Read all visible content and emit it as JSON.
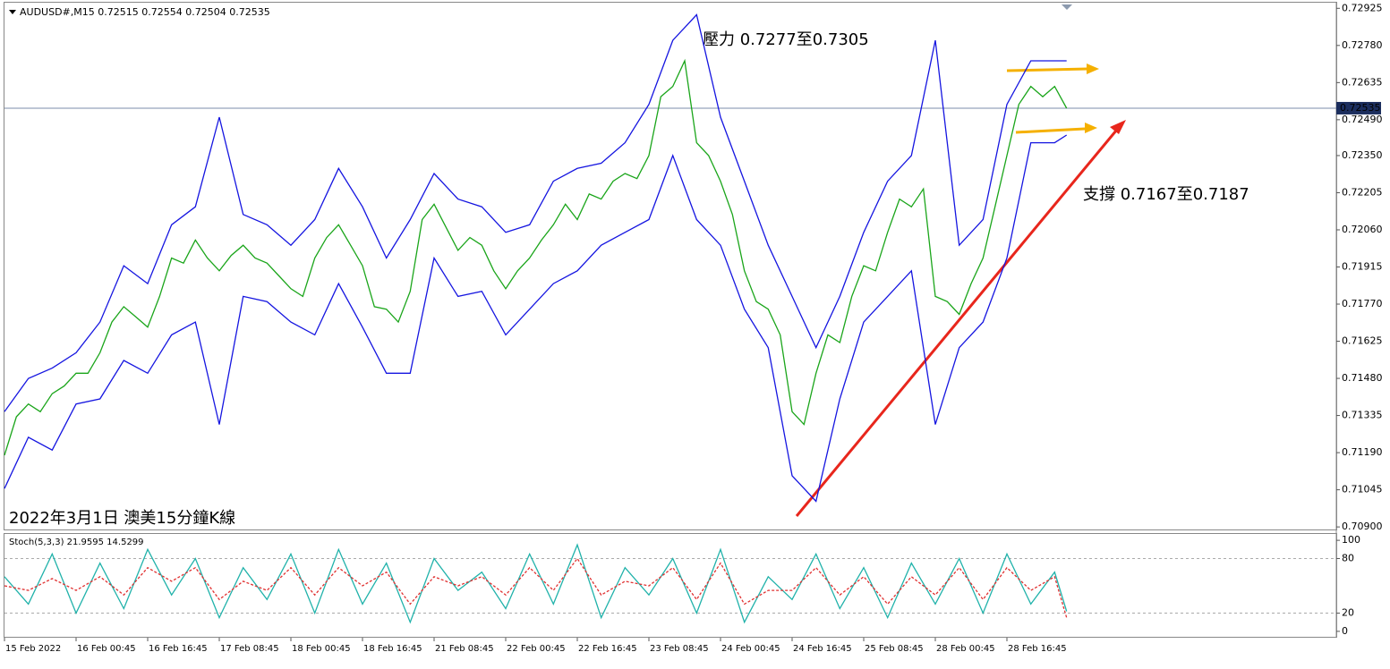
{
  "header": "AUDUSD#,M15  0.72515 0.72554 0.72504 0.72535",
  "chart_data": [
    {
      "type": "line",
      "annotations": [
        "壓力 0.7277至0.7305",
        "支撐 0.7167至0.7187",
        "2022年3月1日 澳美15分鐘K線"
      ],
      "last_price": 0.72535,
      "xlim": [
        0,
        111.6
      ],
      "xticks": [
        {
          "value": 0,
          "label": "15 Feb 2022"
        },
        {
          "value": 6,
          "label": "16 Feb 00:45"
        },
        {
          "value": 12,
          "label": "16 Feb 16:45"
        },
        {
          "value": 18,
          "label": "17 Feb 08:45"
        },
        {
          "value": 24,
          "label": "18 Feb 00:45"
        },
        {
          "value": 30,
          "label": "18 Feb 16:45"
        },
        {
          "value": 36,
          "label": "21 Feb 08:45"
        },
        {
          "value": 42,
          "label": "22 Feb 00:45"
        },
        {
          "value": 48,
          "label": "22 Feb 16:45"
        },
        {
          "value": 54,
          "label": "23 Feb 08:45"
        },
        {
          "value": 60,
          "label": "24 Feb 00:45"
        },
        {
          "value": 66,
          "label": "24 Feb 16:45"
        },
        {
          "value": 72,
          "label": "25 Feb 08:45"
        },
        {
          "value": 78,
          "label": "28 Feb 00:45"
        },
        {
          "value": 84,
          "label": "28 Feb 16:45"
        }
      ],
      "ylim": [
        0.7089,
        0.7294
      ],
      "yticks": [
        0.72925,
        {
          "value": 0.7278,
          "label": "0.72780"
        },
        0.72635,
        {
          "value": 0.7249,
          "label": "0.72490"
        },
        {
          "value": 0.7235,
          "label": "0.72350"
        },
        0.72205,
        {
          "value": 0.7206,
          "label": "0.72060"
        },
        0.71915,
        {
          "value": 0.7177,
          "label": "0.71770"
        },
        0.71625,
        {
          "value": 0.7148,
          "label": "0.71480"
        },
        0.71335,
        {
          "value": 0.7119,
          "label": "0.71190"
        },
        0.71045,
        {
          "value": 0.709,
          "label": "0.70900"
        }
      ],
      "x": [
        0,
        1,
        2,
        3,
        4,
        5,
        6,
        7,
        8,
        9,
        10,
        11,
        12,
        13,
        14,
        15,
        16,
        17,
        18,
        19,
        20,
        21,
        22,
        23,
        24,
        25,
        26,
        27,
        28,
        29,
        30,
        31,
        32,
        33,
        34,
        35,
        36,
        37,
        38,
        39,
        40,
        41,
        42,
        43,
        44,
        45,
        46,
        47,
        48,
        49,
        50,
        51,
        52,
        53,
        54,
        55,
        56,
        57,
        58,
        59,
        60,
        61,
        62,
        63,
        64,
        65,
        66,
        67,
        68,
        69,
        70,
        71,
        72,
        73,
        74,
        75,
        76,
        77,
        78,
        79,
        80,
        81,
        82,
        83,
        84,
        85,
        86,
        87,
        88,
        89
      ],
      "series": [
        {
          "color": "#1aa51a",
          "values": [
            0.7118,
            0.7133,
            0.7138,
            0.7135,
            0.7142,
            0.7145,
            0.715,
            0.715,
            0.7158,
            0.717,
            0.7176,
            0.7172,
            0.7168,
            0.718,
            0.7195,
            0.7193,
            0.7202,
            0.7195,
            0.719,
            0.7196,
            0.72,
            0.7195,
            0.7193,
            0.7188,
            0.7183,
            0.718,
            0.7195,
            0.7203,
            0.7208,
            0.72,
            0.7192,
            0.7176,
            0.7175,
            0.717,
            0.7182,
            0.721,
            0.7216,
            0.7207,
            0.7198,
            0.7203,
            0.72,
            0.719,
            0.7183,
            0.719,
            0.7195,
            0.7202,
            0.7208,
            0.7216,
            0.721,
            0.722,
            0.7218,
            0.7225,
            0.7228,
            0.7226,
            0.7235,
            0.7258,
            0.7262,
            0.7272,
            0.724,
            0.7235,
            0.7225,
            0.7212,
            0.719,
            0.7178,
            0.7175,
            0.7165,
            0.7135,
            0.713,
            0.715,
            0.7165,
            0.7162,
            0.718,
            0.7192,
            0.719,
            0.7205,
            0.7218,
            0.7215,
            0.7222,
            0.718,
            0.7178,
            0.7173,
            0.7185,
            0.7195,
            0.7215,
            0.7235,
            0.7255,
            0.7262,
            0.7258,
            0.7262,
            0.72535
          ]
        },
        {
          "color": "#1515e0",
          "x": [
            0,
            2,
            4,
            6,
            8,
            10,
            12,
            14,
            16,
            18,
            20,
            22,
            24,
            26,
            28,
            30,
            32,
            34,
            36,
            38,
            40,
            42,
            44,
            46,
            48,
            50,
            52,
            54,
            56,
            58,
            60,
            62,
            64,
            66,
            68,
            70,
            72,
            74,
            76,
            78,
            80,
            82,
            84,
            86,
            88,
            89
          ],
          "values": [
            0.7135,
            0.7148,
            0.7152,
            0.7158,
            0.717,
            0.7192,
            0.7185,
            0.7208,
            0.7215,
            0.725,
            0.7212,
            0.7208,
            0.72,
            0.721,
            0.723,
            0.7215,
            0.7195,
            0.721,
            0.7228,
            0.7218,
            0.7215,
            0.7205,
            0.7208,
            0.7225,
            0.723,
            0.7232,
            0.724,
            0.7255,
            0.728,
            0.729,
            0.725,
            0.7225,
            0.72,
            0.718,
            0.716,
            0.718,
            0.7205,
            0.7225,
            0.7235,
            0.728,
            0.72,
            0.721,
            0.7255,
            0.7272,
            0.7272,
            0.7272
          ]
        },
        {
          "color": "#1515e0",
          "x": [
            0,
            2,
            4,
            6,
            8,
            10,
            12,
            14,
            16,
            18,
            20,
            22,
            24,
            26,
            28,
            30,
            32,
            34,
            36,
            38,
            40,
            42,
            44,
            46,
            48,
            50,
            52,
            54,
            56,
            58,
            60,
            62,
            64,
            66,
            68,
            70,
            72,
            74,
            76,
            78,
            80,
            82,
            84,
            86,
            88,
            89
          ],
          "values": [
            0.7105,
            0.7125,
            0.712,
            0.7138,
            0.714,
            0.7155,
            0.715,
            0.7165,
            0.717,
            0.713,
            0.718,
            0.7178,
            0.717,
            0.7165,
            0.7185,
            0.7168,
            0.715,
            0.715,
            0.7195,
            0.718,
            0.7182,
            0.7165,
            0.7175,
            0.7185,
            0.719,
            0.72,
            0.7205,
            0.721,
            0.7235,
            0.721,
            0.72,
            0.7175,
            0.716,
            0.711,
            0.71,
            0.714,
            0.717,
            0.718,
            0.719,
            0.713,
            0.716,
            0.717,
            0.7195,
            0.724,
            0.724,
            0.7243
          ]
        }
      ]
    },
    {
      "type": "line",
      "title": "Stoch(5,3,3) 21.9595 14.5299",
      "xlim": [
        0,
        111.6
      ],
      "ylim": [
        -6,
        107
      ],
      "yticks": [
        100,
        80,
        20,
        0
      ],
      "levels": [
        80,
        20
      ],
      "x": [
        0,
        2,
        4,
        6,
        8,
        10,
        12,
        14,
        16,
        18,
        20,
        22,
        24,
        26,
        28,
        30,
        32,
        34,
        36,
        38,
        40,
        42,
        44,
        46,
        48,
        50,
        52,
        54,
        56,
        58,
        60,
        62,
        64,
        66,
        68,
        70,
        72,
        74,
        76,
        78,
        80,
        82,
        84,
        86,
        88,
        89
      ],
      "series": [
        {
          "color": "#20b2aa",
          "values": [
            60,
            30,
            85,
            20,
            75,
            25,
            90,
            40,
            80,
            15,
            70,
            35,
            85,
            20,
            90,
            30,
            75,
            10,
            80,
            45,
            65,
            25,
            85,
            30,
            95,
            15,
            70,
            40,
            80,
            20,
            90,
            10,
            60,
            35,
            85,
            25,
            70,
            15,
            75,
            30,
            80,
            20,
            85,
            30,
            65,
            22
          ]
        },
        {
          "color": "#e03030",
          "dash": true,
          "values": [
            50,
            45,
            58,
            45,
            60,
            40,
            70,
            55,
            70,
            35,
            55,
            45,
            70,
            40,
            70,
            50,
            65,
            30,
            60,
            50,
            60,
            40,
            70,
            45,
            80,
            40,
            55,
            50,
            70,
            35,
            75,
            30,
            45,
            45,
            70,
            40,
            60,
            30,
            60,
            40,
            70,
            35,
            70,
            45,
            60,
            15
          ]
        }
      ]
    }
  ]
}
